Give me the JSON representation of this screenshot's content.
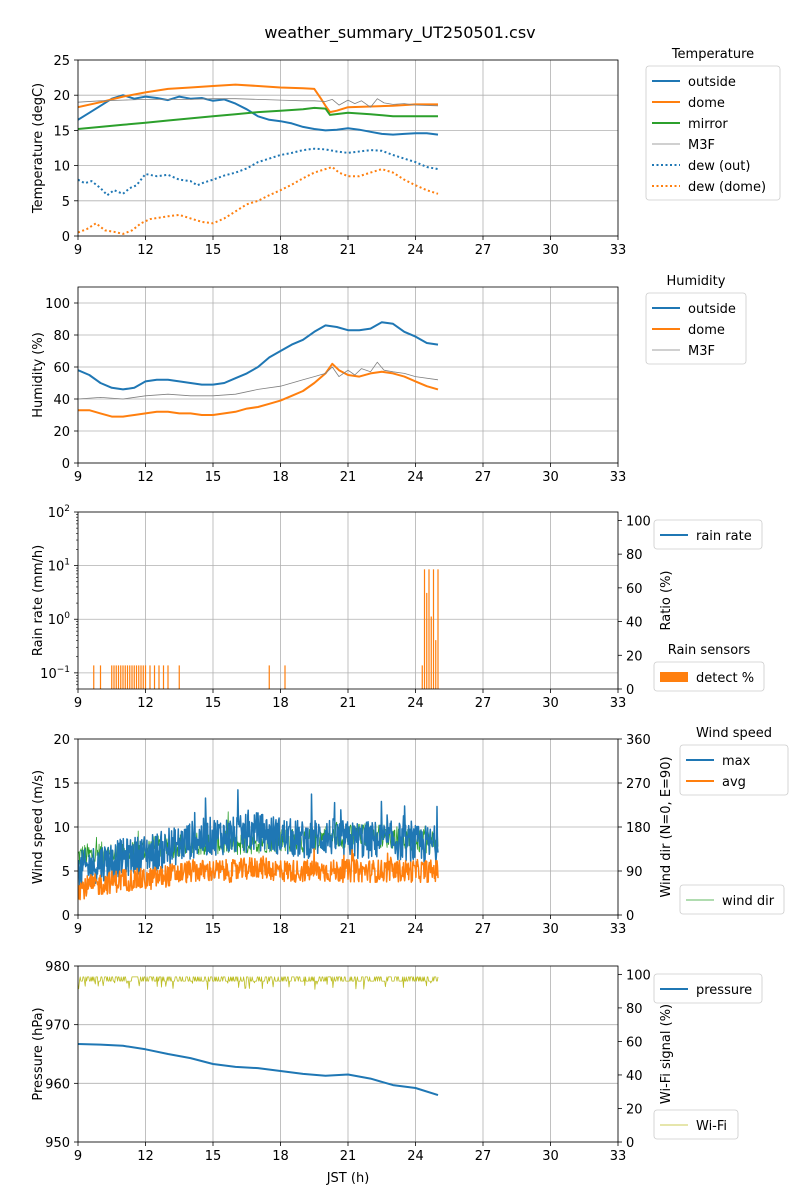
{
  "title": "weather_summary_UT250501.csv",
  "x_axis": {
    "label": "JST (h)",
    "min": 9,
    "max": 33,
    "ticks": [
      9,
      12,
      15,
      18,
      21,
      24,
      27,
      30,
      33
    ]
  },
  "chart_data": [
    {
      "id": "temperature",
      "type": "line",
      "ylabel": "Temperature (degC)",
      "ylim": [
        0,
        25
      ],
      "yticks": [
        0,
        5,
        10,
        15,
        20,
        25
      ],
      "grid": true,
      "legend_title": "Temperature",
      "legend_placement": "outside-right",
      "series": [
        {
          "name": "outside",
          "color": "#1f77b4",
          "style": "solid",
          "width": 2,
          "x": [
            9,
            9.5,
            10,
            10.5,
            11,
            11.5,
            12,
            12.5,
            13,
            13.5,
            14,
            14.5,
            15,
            15.5,
            16,
            16.5,
            17,
            17.5,
            18,
            18.5,
            19,
            19.5,
            20,
            20.5,
            21,
            21.5,
            22,
            22.5,
            23,
            23.5,
            24,
            24.5,
            25
          ],
          "y": [
            16.5,
            17.5,
            18.5,
            19.5,
            20.0,
            19.5,
            19.8,
            19.6,
            19.3,
            19.8,
            19.5,
            19.6,
            19.2,
            19.4,
            18.8,
            18.0,
            17.0,
            16.5,
            16.3,
            16.0,
            15.5,
            15.2,
            15.0,
            15.1,
            15.3,
            15.1,
            14.8,
            14.5,
            14.4,
            14.5,
            14.6,
            14.6,
            14.4
          ]
        },
        {
          "name": "dome",
          "color": "#ff7f0e",
          "style": "solid",
          "width": 2,
          "x": [
            9,
            10,
            11,
            12,
            13,
            14,
            15,
            16,
            17,
            18,
            19,
            19.5,
            19.8,
            20,
            20.2,
            20.5,
            21,
            22,
            23,
            24,
            25
          ],
          "y": [
            18.3,
            19.0,
            19.8,
            20.4,
            20.9,
            21.1,
            21.3,
            21.5,
            21.3,
            21.1,
            21.0,
            20.9,
            19.5,
            18.5,
            17.6,
            17.8,
            18.3,
            18.4,
            18.5,
            18.7,
            18.7
          ]
        },
        {
          "name": "mirror",
          "color": "#2ca02c",
          "style": "solid",
          "width": 2,
          "x": [
            9,
            10,
            11,
            12,
            13,
            14,
            15,
            16,
            17,
            18,
            19,
            19.5,
            20,
            20.2,
            21,
            22,
            23,
            24,
            25
          ],
          "y": [
            15.2,
            15.5,
            15.8,
            16.1,
            16.4,
            16.7,
            17.0,
            17.3,
            17.6,
            17.8,
            18.0,
            18.2,
            18.1,
            17.2,
            17.5,
            17.3,
            17.0,
            17.0,
            17.0
          ]
        },
        {
          "name": "M3F",
          "color": "#808080",
          "style": "solid",
          "width": 0.8,
          "x": [
            9,
            10,
            11,
            12,
            13,
            14,
            15,
            16,
            17,
            18,
            19,
            19.5,
            20,
            20.3,
            20.6,
            21,
            21.3,
            21.6,
            22,
            22.3,
            22.6,
            23,
            23.5,
            24,
            25
          ],
          "y": [
            19.0,
            19.2,
            19.3,
            19.4,
            19.4,
            19.4,
            19.5,
            19.5,
            19.4,
            19.3,
            19.2,
            19.2,
            19.1,
            19.4,
            18.6,
            19.3,
            18.8,
            19.2,
            18.3,
            19.5,
            18.9,
            18.7,
            18.8,
            18.6,
            18.5
          ]
        },
        {
          "name": "dew (out)",
          "color": "#1f77b4",
          "style": "dotted",
          "width": 2,
          "x": [
            9,
            9.3,
            9.6,
            10,
            10.3,
            10.6,
            11,
            11.3,
            11.6,
            12,
            12.5,
            13,
            13.5,
            14,
            14.3,
            14.6,
            15,
            15.5,
            16,
            16.5,
            17,
            17.5,
            18,
            18.5,
            19,
            19.5,
            20,
            20.5,
            21,
            21.5,
            22,
            22.5,
            23,
            23.5,
            24,
            24.5,
            25
          ],
          "y": [
            8.0,
            7.5,
            7.8,
            6.8,
            5.8,
            6.5,
            6.0,
            6.8,
            7.2,
            8.8,
            8.5,
            8.7,
            8.0,
            7.8,
            7.2,
            7.6,
            8.0,
            8.6,
            9.0,
            9.6,
            10.5,
            11.0,
            11.5,
            11.8,
            12.2,
            12.4,
            12.3,
            12.0,
            11.8,
            12.0,
            12.2,
            12.1,
            11.5,
            11.0,
            10.5,
            9.8,
            9.5
          ]
        },
        {
          "name": "dew (dome)",
          "color": "#ff7f0e",
          "style": "dotted",
          "width": 2,
          "x": [
            9,
            9.4,
            9.8,
            10.2,
            10.6,
            11,
            11.4,
            11.8,
            12.2,
            12.6,
            13,
            13.5,
            14,
            14.5,
            15,
            15.5,
            16,
            16.5,
            17,
            17.5,
            18,
            18.5,
            19,
            19.5,
            20,
            20.3,
            20.6,
            21,
            21.5,
            22,
            22.5,
            23,
            23.5,
            24,
            24.5,
            25
          ],
          "y": [
            0.5,
            1.0,
            1.8,
            0.8,
            0.6,
            0.3,
            0.8,
            1.8,
            2.4,
            2.6,
            2.8,
            3.0,
            2.5,
            2.0,
            1.8,
            2.5,
            3.5,
            4.5,
            5.0,
            5.8,
            6.5,
            7.3,
            8.2,
            9.0,
            9.5,
            9.8,
            9.0,
            8.5,
            8.5,
            9.0,
            9.5,
            9.0,
            8.0,
            7.2,
            6.5,
            6.0
          ]
        }
      ]
    },
    {
      "id": "humidity",
      "type": "line",
      "ylabel": "Humidity (%)",
      "ylim": [
        0,
        110
      ],
      "yticks": [
        0,
        20,
        40,
        60,
        80,
        100
      ],
      "grid": true,
      "legend_title": "Humidity",
      "legend_placement": "outside-right",
      "series": [
        {
          "name": "outside",
          "color": "#1f77b4",
          "style": "solid",
          "width": 2,
          "x": [
            9,
            9.5,
            10,
            10.5,
            11,
            11.5,
            12,
            12.5,
            13,
            13.5,
            14,
            14.5,
            15,
            15.5,
            16,
            16.5,
            17,
            17.5,
            18,
            18.5,
            19,
            19.5,
            20,
            20.5,
            21,
            21.5,
            22,
            22.5,
            23,
            23.5,
            24,
            24.5,
            25
          ],
          "y": [
            58,
            55,
            50,
            47,
            46,
            47,
            51,
            52,
            52,
            51,
            50,
            49,
            49,
            50,
            53,
            56,
            60,
            66,
            70,
            74,
            77,
            82,
            86,
            85,
            83,
            83,
            84,
            88,
            87,
            82,
            79,
            75,
            74
          ]
        },
        {
          "name": "dome",
          "color": "#ff7f0e",
          "style": "solid",
          "width": 2,
          "x": [
            9,
            9.5,
            10,
            10.5,
            11,
            11.5,
            12,
            12.5,
            13,
            13.5,
            14,
            14.5,
            15,
            15.5,
            16,
            16.5,
            17,
            17.5,
            18,
            18.5,
            19,
            19.5,
            20,
            20.3,
            20.6,
            21,
            21.5,
            22,
            22.5,
            23,
            23.5,
            24,
            24.5,
            25
          ],
          "y": [
            33,
            33,
            31,
            29,
            29,
            30,
            31,
            32,
            32,
            31,
            31,
            30,
            30,
            31,
            32,
            34,
            35,
            37,
            39,
            42,
            45,
            50,
            56,
            62,
            58,
            55,
            54,
            56,
            57,
            56,
            54,
            51,
            48,
            46
          ]
        },
        {
          "name": "M3F",
          "color": "#808080",
          "style": "solid",
          "width": 0.8,
          "x": [
            9,
            10,
            11,
            12,
            13,
            14,
            15,
            16,
            17,
            18,
            19,
            19.5,
            20,
            20.3,
            20.6,
            21,
            21.3,
            21.6,
            22,
            22.3,
            22.6,
            23,
            23.5,
            24,
            25
          ],
          "y": [
            40,
            41,
            40,
            42,
            43,
            42,
            42,
            43,
            46,
            48,
            52,
            54,
            56,
            60,
            54,
            58,
            55,
            59,
            57,
            63,
            58,
            57,
            56,
            54,
            52
          ]
        }
      ]
    },
    {
      "id": "rain",
      "type": "bar",
      "ylabel": "Rain rate (mm/h)",
      "ylabel_right": "Ratio (%)",
      "yscale": "log",
      "ylim": [
        0.05,
        100
      ],
      "yticks": [
        0.1,
        1,
        10,
        100
      ],
      "yticks_right": [
        0,
        20,
        40,
        60,
        80,
        100
      ],
      "ylim_right": [
        0,
        105
      ],
      "grid": true,
      "legends": [
        {
          "title": "",
          "placement": "outside-right-top",
          "entries": [
            {
              "name": "rain rate",
              "color": "#1f77b4",
              "kind": "line"
            }
          ]
        },
        {
          "title": "Rain sensors",
          "placement": "outside-right-bottom",
          "entries": [
            {
              "name": "detect %",
              "color": "#ff7f0e",
              "kind": "patch"
            }
          ]
        }
      ],
      "series": [
        {
          "name": "detect %",
          "color": "#ff7f0e",
          "axis": "right",
          "x": [
            9.7,
            10.0,
            10.5,
            10.6,
            10.7,
            10.8,
            10.9,
            11.0,
            11.1,
            11.2,
            11.3,
            11.4,
            11.5,
            11.6,
            11.7,
            11.8,
            11.9,
            12.0,
            12.2,
            12.4,
            12.6,
            12.8,
            13.0,
            13.5,
            17.5,
            18.2,
            24.3,
            24.4,
            24.5,
            24.6,
            24.7,
            24.8,
            24.9,
            25.0
          ],
          "y": [
            14,
            14,
            14,
            14,
            14,
            14,
            14,
            14,
            14,
            14,
            14,
            14,
            14,
            14,
            14,
            14,
            14,
            14,
            14,
            14,
            14,
            14,
            14,
            14,
            14,
            14,
            14,
            71,
            57,
            71,
            43,
            71,
            29,
            71
          ]
        },
        {
          "name": "rain rate",
          "color": "#1f77b4",
          "axis": "left",
          "x": [],
          "y": []
        }
      ]
    },
    {
      "id": "wind",
      "type": "line",
      "ylabel": "Wind speed (m/s)",
      "ylabel_right": "Wind dir  (N=0, E=90)",
      "ylim": [
        0,
        20
      ],
      "yticks": [
        0,
        5,
        10,
        15,
        20
      ],
      "ylim_right": [
        0,
        360
      ],
      "yticks_right": [
        0,
        90,
        180,
        270,
        360
      ],
      "grid": true,
      "legends": [
        {
          "title": "Wind speed",
          "placement": "outside-right-top",
          "entries": [
            {
              "name": "max",
              "color": "#1f77b4",
              "kind": "line"
            },
            {
              "name": "avg",
              "color": "#ff7f0e",
              "kind": "line"
            }
          ]
        },
        {
          "title": "",
          "placement": "outside-right-bottom",
          "entries": [
            {
              "name": "wind dir",
              "color": "#2ca02c",
              "kind": "thinline"
            }
          ]
        }
      ],
      "series": [
        {
          "name": "wind dir",
          "color": "#2ca02c",
          "axis": "right",
          "width": 0.8,
          "amplitude": 25,
          "x": [
            9,
            10,
            11,
            12,
            13,
            14,
            15,
            16,
            17,
            18,
            19,
            20,
            21,
            22,
            23,
            24,
            25
          ],
          "y": [
            120,
            125,
            120,
            135,
            140,
            145,
            150,
            145,
            150,
            155,
            150,
            160,
            160,
            165,
            160,
            150,
            150
          ]
        },
        {
          "name": "max",
          "color": "#1f77b4",
          "axis": "left",
          "width": 1.5,
          "amplitude": 2.2,
          "x": [
            9,
            10,
            11,
            12,
            13,
            14,
            15,
            16,
            17,
            18,
            19,
            20,
            21,
            22,
            23,
            24,
            25
          ],
          "y": [
            5.0,
            6.0,
            6.5,
            7.0,
            7.5,
            8.5,
            9.0,
            9.0,
            9.5,
            9.0,
            8.5,
            9.0,
            8.5,
            8.5,
            8.5,
            8.0,
            8.0
          ]
        },
        {
          "name": "avg",
          "color": "#ff7f0e",
          "axis": "left",
          "width": 1.5,
          "amplitude": 1.3,
          "x": [
            9,
            10,
            11,
            12,
            13,
            14,
            15,
            16,
            17,
            18,
            19,
            20,
            21,
            22,
            23,
            24,
            25
          ],
          "y": [
            3.0,
            3.5,
            4.0,
            4.0,
            4.5,
            5.0,
            5.0,
            5.0,
            5.5,
            5.0,
            5.0,
            5.0,
            5.0,
            5.0,
            5.0,
            5.0,
            5.0
          ]
        }
      ]
    },
    {
      "id": "pressure",
      "type": "line",
      "ylabel": "Pressure (hPa)",
      "ylabel_right": "Wi-Fi signal (%)",
      "ylim": [
        950,
        980
      ],
      "yticks": [
        950,
        960,
        970,
        980
      ],
      "ylim_right": [
        0,
        105
      ],
      "yticks_right": [
        0,
        20,
        40,
        60,
        80,
        100
      ],
      "grid": true,
      "legends": [
        {
          "title": "",
          "placement": "outside-right-top",
          "entries": [
            {
              "name": "pressure",
              "color": "#1f77b4",
              "kind": "line"
            }
          ]
        },
        {
          "title": "",
          "placement": "outside-right-bottom",
          "entries": [
            {
              "name": "Wi-Fi",
              "color": "#bcbd22",
              "kind": "thinline"
            }
          ]
        }
      ],
      "series": [
        {
          "name": "pressure",
          "color": "#1f77b4",
          "axis": "left",
          "width": 2,
          "x": [
            9,
            10,
            11,
            12,
            13,
            14,
            15,
            16,
            17,
            18,
            19,
            20,
            21,
            22,
            23,
            24,
            25
          ],
          "y": [
            966.7,
            966.6,
            966.4,
            965.8,
            965.0,
            964.3,
            963.3,
            962.8,
            962.6,
            962.1,
            961.6,
            961.3,
            961.5,
            960.8,
            959.7,
            959.2,
            958.0
          ]
        },
        {
          "name": "Wi-Fi",
          "color": "#bcbd22",
          "axis": "right",
          "width": 0.8,
          "x": [
            9,
            25
          ],
          "y": [
            97,
            97
          ]
        }
      ]
    }
  ]
}
